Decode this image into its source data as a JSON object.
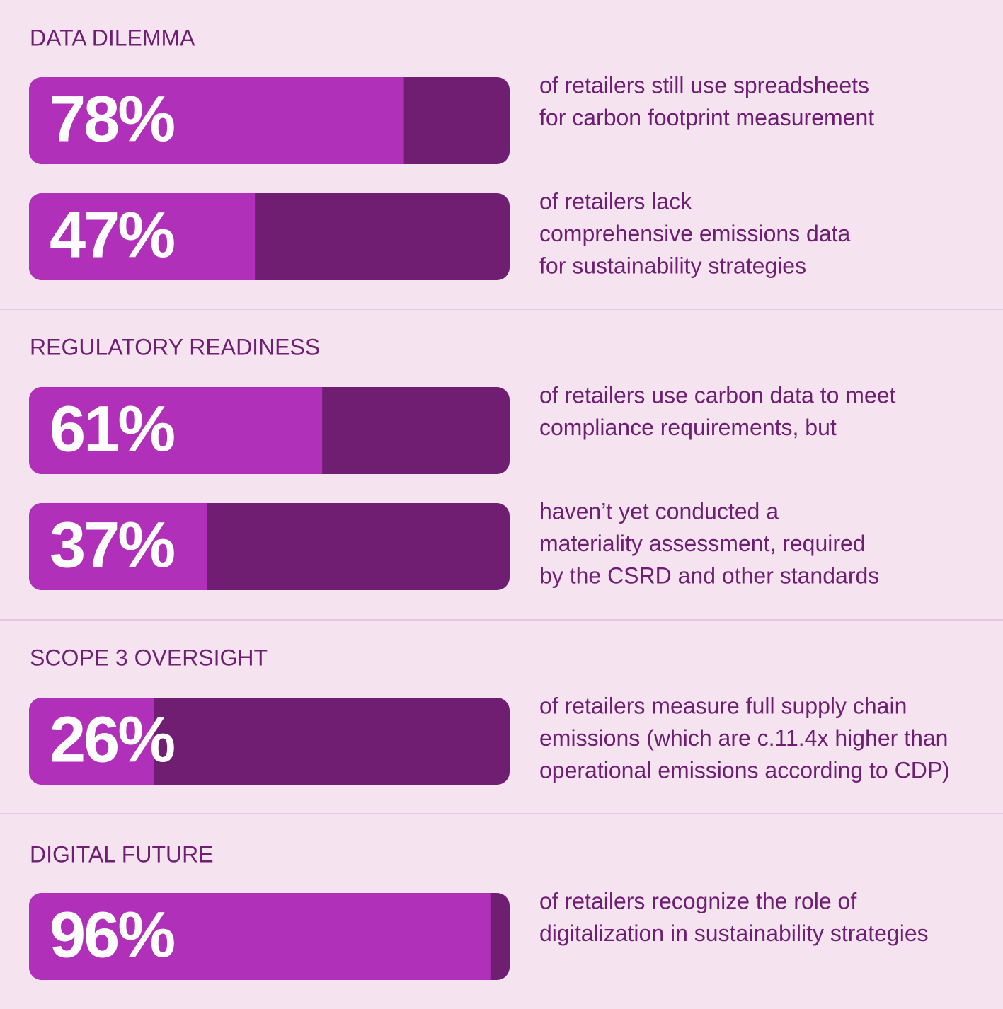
{
  "sections": [
    {
      "title": "DATA DILEMMA",
      "items": [
        {
          "value": 78,
          "label": "78%",
          "text": [
            "of retailers still use spreadsheets",
            "for carbon footprint measurement"
          ]
        },
        {
          "value": 47,
          "label": "47%",
          "text": [
            "of retailers lack",
            "comprehensive emissions data",
            "for sustainability strategies"
          ]
        }
      ]
    },
    {
      "title": "REGULATORY READINESS",
      "items": [
        {
          "value": 61,
          "label": "61%",
          "text": [
            "of retailers use carbon data to meet",
            "compliance requirements, but"
          ]
        },
        {
          "value": 37,
          "label": "37%",
          "text": [
            "haven’t yet conducted a",
            "materiality assessment, required",
            "by the CSRD and other standards"
          ]
        }
      ]
    },
    {
      "title": "SCOPE 3 OVERSIGHT",
      "items": [
        {
          "value": 26,
          "label": "26%",
          "text": [
            "of retailers measure full supply chain",
            "emissions (which are c.11.4x higher than",
            "operational emissions according to CDP)"
          ]
        }
      ]
    },
    {
      "title": "DIGITAL FUTURE",
      "items": [
        {
          "value": 96,
          "label": "96%",
          "text": [
            "of retailers recognize the role of",
            "digitalization in sustainability strategies"
          ]
        }
      ]
    }
  ]
}
